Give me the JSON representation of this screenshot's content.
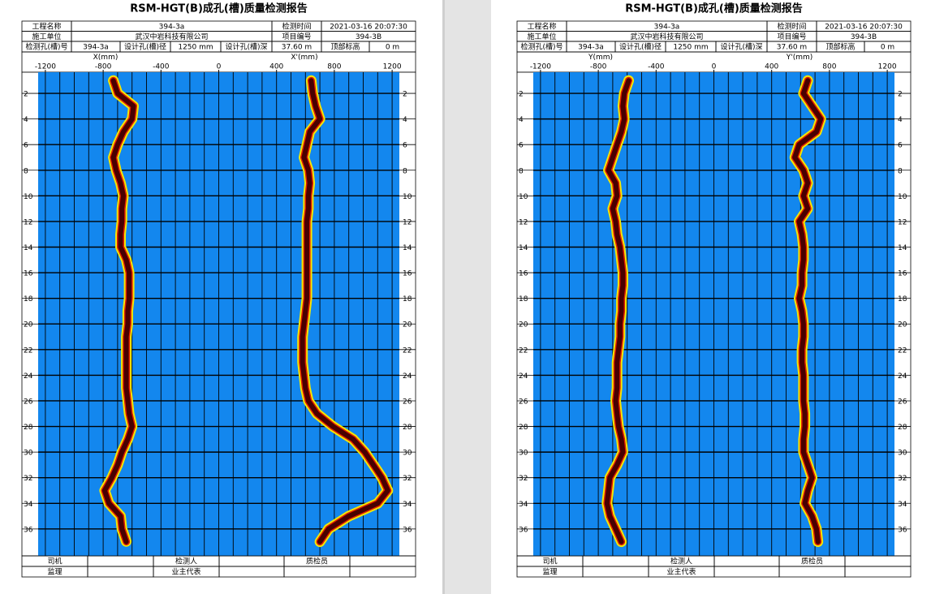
{
  "pages": [
    {
      "title": "RSM-HGT(B)成孔(槽)质量检测报告",
      "header_rows": [
        [
          "工程名称",
          "394-3a",
          "检测时间",
          "2021-03-16 20:07:30"
        ],
        [
          "施工单位",
          "武汉中岩科技有限公司",
          "项目编号",
          "394-3B"
        ],
        [
          "检测孔(槽)号",
          "394-3a",
          "设计孔(槽)径",
          "1250 mm",
          "设计孔(槽)深",
          "37.60 m",
          "顶部标高",
          "0 m"
        ]
      ],
      "footer_rows": [
        [
          "司机",
          "检测人",
          "质检员"
        ],
        [
          "监理",
          "业主代表"
        ]
      ],
      "chart_data": {
        "type": "profile",
        "xlabel": "X(mm)",
        "x2label": "X'(mm)",
        "xlim": [
          -1250,
          1250
        ],
        "xticks": [
          -1200,
          -800,
          -400,
          0,
          400,
          800,
          1200
        ],
        "x_grid_step": 100,
        "ylim": [
          0.35,
          38.1
        ],
        "yticks": [
          2,
          4,
          6,
          8,
          10,
          12,
          14,
          16,
          18,
          20,
          22,
          24,
          26,
          28,
          30,
          32,
          34,
          36
        ],
        "background": "#1387ee",
        "color": "#4a0000",
        "depths": [
          1,
          2,
          3,
          4,
          5,
          6,
          7,
          8,
          9,
          10,
          11,
          12,
          13,
          14,
          15,
          16,
          17,
          18,
          19,
          20,
          21,
          22,
          23,
          24,
          25,
          26,
          27,
          28,
          29,
          30,
          31,
          32,
          33,
          34,
          35,
          36,
          37
        ],
        "series": [
          {
            "name": "X",
            "values": [
              -730,
              -700,
              -590,
              -600,
              -660,
              -700,
              -730,
              -710,
              -680,
              -660,
              -670,
              -670,
              -680,
              -680,
              -640,
              -620,
              -620,
              -620,
              -630,
              -630,
              -640,
              -640,
              -640,
              -640,
              -640,
              -630,
              -620,
              -600,
              -630,
              -670,
              -700,
              -740,
              -790,
              -760,
              -680,
              -670,
              -640
            ]
          },
          {
            "name": "X'",
            "values": [
              640,
              650,
              670,
              700,
              630,
              610,
              590,
              620,
              630,
              620,
              620,
              610,
              610,
              610,
              610,
              610,
              610,
              610,
              600,
              590,
              580,
              580,
              580,
              590,
              600,
              620,
              680,
              790,
              930,
              1010,
              1070,
              1130,
              1170,
              1100,
              900,
              760,
              700
            ]
          }
        ]
      }
    },
    {
      "title": "RSM-HGT(B)成孔(槽)质量检测报告",
      "header_rows": [
        [
          "工程名称",
          "394-3a",
          "检测时间",
          "2021-03-16 20:07:30"
        ],
        [
          "施工单位",
          "武汉中岩科技有限公司",
          "项目编号",
          "394-3B"
        ],
        [
          "检测孔(槽)号",
          "394-3a",
          "设计孔(槽)径",
          "1250 mm",
          "设计孔(槽)深",
          "37.60 m",
          "顶部标高",
          "0 m"
        ]
      ],
      "footer_rows": [
        [
          "司机",
          "检测人",
          "质检员"
        ],
        [
          "监理",
          "业主代表"
        ]
      ],
      "chart_data": {
        "type": "profile",
        "xlabel": "Y(mm)",
        "x2label": "Y'(mm)",
        "xlim": [
          -1250,
          1250
        ],
        "xticks": [
          -1200,
          -800,
          -400,
          0,
          400,
          800,
          1200
        ],
        "x_grid_step": 100,
        "ylim": [
          0.35,
          38.1
        ],
        "yticks": [
          2,
          4,
          6,
          8,
          10,
          12,
          14,
          16,
          18,
          20,
          22,
          24,
          26,
          28,
          30,
          32,
          34,
          36
        ],
        "background": "#1387ee",
        "color": "#4a0000",
        "depths": [
          1,
          2,
          3,
          4,
          5,
          6,
          7,
          8,
          9,
          10,
          11,
          12,
          13,
          14,
          15,
          16,
          17,
          18,
          19,
          20,
          21,
          22,
          23,
          24,
          25,
          26,
          27,
          28,
          29,
          30,
          31,
          32,
          33,
          34,
          35,
          36,
          37
        ],
        "series": [
          {
            "name": "Y",
            "values": [
              -590,
              -620,
              -630,
              -620,
              -640,
              -670,
              -700,
              -730,
              -680,
              -670,
              -700,
              -680,
              -670,
              -650,
              -640,
              -630,
              -630,
              -640,
              -640,
              -650,
              -650,
              -660,
              -670,
              -670,
              -670,
              -680,
              -670,
              -660,
              -640,
              -630,
              -670,
              -720,
              -730,
              -740,
              -720,
              -680,
              -640
            ]
          },
          {
            "name": "Y'",
            "values": [
              650,
              620,
              680,
              740,
              710,
              590,
              560,
              620,
              650,
              620,
              650,
              590,
              610,
              620,
              620,
              610,
              610,
              590,
              610,
              620,
              620,
              610,
              610,
              620,
              620,
              620,
              630,
              630,
              620,
              620,
              650,
              680,
              650,
              630,
              680,
              710,
              720
            ]
          }
        ]
      }
    }
  ]
}
